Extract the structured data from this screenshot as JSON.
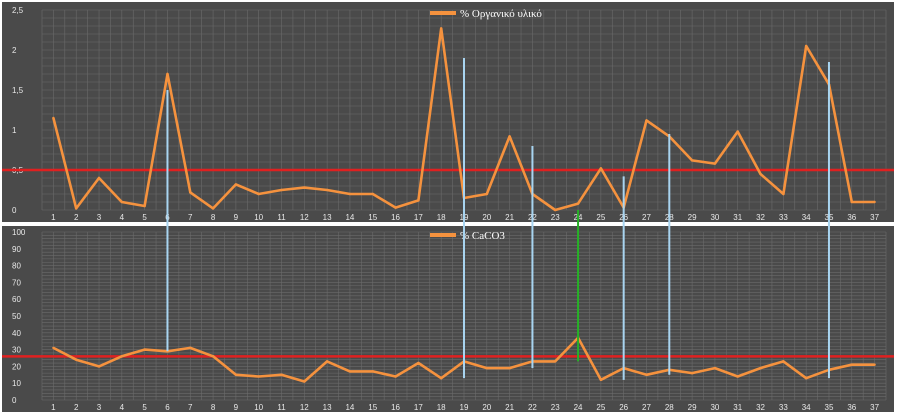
{
  "colors": {
    "panel_bg": "#4a4a4a",
    "grid": "#6b6b6b",
    "series": "#f5923e",
    "threshold": "#e02020",
    "connector": "#a8d4f0",
    "connector_highlight": "#27b027"
  },
  "chart_data": [
    {
      "type": "line",
      "title": "",
      "xlabel": "",
      "ylabel": "",
      "x": [
        1,
        2,
        3,
        4,
        5,
        6,
        7,
        8,
        9,
        10,
        11,
        12,
        13,
        14,
        15,
        16,
        17,
        18,
        19,
        20,
        21,
        22,
        23,
        24,
        25,
        26,
        27,
        28,
        29,
        30,
        31,
        32,
        33,
        34,
        35,
        36,
        37
      ],
      "ylim": [
        0,
        2.5
      ],
      "yticks": [
        "0",
        "0,5",
        "1",
        "1,5",
        "2",
        "2,5"
      ],
      "ytick_values": [
        0,
        0.5,
        1,
        1.5,
        2,
        2.5
      ],
      "grid": true,
      "legend_position": "top-center",
      "series": [
        {
          "name": "% Οργανικό υλικό",
          "values": [
            1.15,
            0.02,
            0.4,
            0.1,
            0.05,
            1.7,
            0.22,
            0.02,
            0.32,
            0.2,
            0.25,
            0.28,
            0.25,
            0.2,
            0.2,
            0.03,
            0.12,
            2.27,
            0.15,
            0.2,
            0.92,
            0.2,
            0.0,
            0.08,
            0.52,
            0.03,
            1.12,
            0.92,
            0.62,
            0.58,
            0.98,
            0.45,
            0.2,
            2.05,
            1.57,
            0.1,
            0.1
          ]
        }
      ],
      "threshold": 0.5
    },
    {
      "type": "line",
      "title": "",
      "xlabel": "",
      "ylabel": "",
      "x": [
        1,
        2,
        3,
        4,
        5,
        6,
        7,
        8,
        9,
        10,
        11,
        12,
        13,
        14,
        15,
        16,
        17,
        18,
        19,
        20,
        21,
        22,
        23,
        24,
        25,
        26,
        27,
        28,
        29,
        30,
        31,
        32,
        33,
        34,
        35,
        36,
        37
      ],
      "ylim": [
        0,
        100
      ],
      "yticks": [
        "0",
        "10",
        "20",
        "30",
        "40",
        "50",
        "60",
        "70",
        "80",
        "90",
        "100"
      ],
      "ytick_values": [
        0,
        10,
        20,
        30,
        40,
        50,
        60,
        70,
        80,
        90,
        100
      ],
      "grid": true,
      "legend_position": "top-center",
      "series": [
        {
          "name": "% CaCO3",
          "values": [
            31,
            24,
            20,
            26,
            30,
            29,
            31,
            26,
            15,
            14,
            15,
            11,
            23,
            17,
            17,
            14,
            22,
            13,
            23,
            19,
            19,
            23,
            23,
            37,
            12,
            19,
            15,
            18,
            16,
            19,
            14,
            19,
            23,
            13,
            18,
            21,
            21
          ]
        }
      ],
      "threshold": 26
    }
  ],
  "connectors": [
    {
      "x": 6,
      "from_value": 1.5,
      "to_value": 29,
      "highlight": false
    },
    {
      "x": 19,
      "from_value": 1.9,
      "to_value": 13,
      "highlight": false
    },
    {
      "x": 22,
      "from_value": 0.8,
      "to_value": 19,
      "highlight": false
    },
    {
      "x": 24,
      "from_value": 0.0,
      "to_value": 23,
      "highlight": true
    },
    {
      "x": 26,
      "from_value": 0.42,
      "to_value": 12,
      "highlight": false
    },
    {
      "x": 28,
      "from_value": 0.95,
      "to_value": 15,
      "highlight": false
    },
    {
      "x": 35,
      "from_value": 1.85,
      "to_value": 13,
      "highlight": false
    }
  ]
}
